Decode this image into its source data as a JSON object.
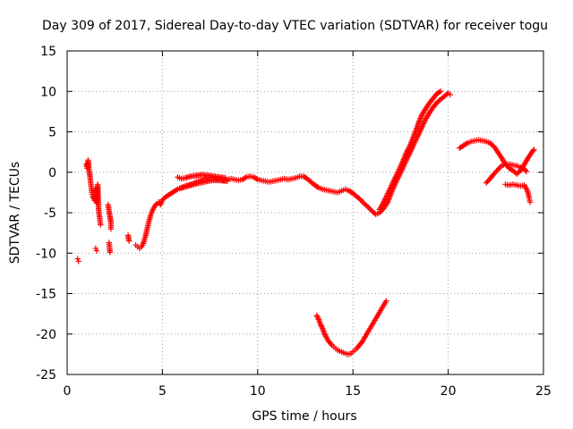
{
  "chart_data": {
    "type": "scatter",
    "title": "Day 309 of 2017, Sidereal Day-to-day VTEC variation (SDTVAR) for receiver togu",
    "xlabel": "GPS time / hours",
    "ylabel": "SDTVAR / TECUs",
    "xlim": [
      0,
      25
    ],
    "ylim": [
      -25,
      15
    ],
    "xticks": [
      "0",
      "5",
      "10",
      "15",
      "20",
      "25"
    ],
    "yticks": [
      "15",
      "10",
      "5",
      "0",
      "-5",
      "-10",
      "-15",
      "-20",
      "-25"
    ],
    "grid": true,
    "marker": "plus",
    "color": "#ff0000",
    "series": [
      {
        "name": "SDTVAR",
        "segments": [
          [
            [
              0.55,
              -10.7
            ],
            [
              0.6,
              -11.0
            ]
          ],
          [
            [
              1.0,
              1.0
            ],
            [
              1.05,
              0.5
            ],
            [
              1.1,
              1.5
            ],
            [
              1.15,
              0.2
            ],
            [
              1.2,
              -0.5
            ],
            [
              1.25,
              -1.5
            ],
            [
              1.3,
              -2.5
            ],
            [
              1.35,
              -3.0
            ],
            [
              1.45,
              -3.5
            ],
            [
              1.5,
              -2.0
            ],
            [
              1.55,
              -3.8
            ],
            [
              1.6,
              -1.5
            ],
            [
              1.65,
              -4.5
            ],
            [
              1.7,
              -5.5
            ],
            [
              1.75,
              -6.5
            ]
          ],
          [
            [
              1.5,
              -9.4
            ],
            [
              1.55,
              -9.7
            ]
          ],
          [
            [
              2.15,
              -4.0
            ],
            [
              2.2,
              -4.8
            ],
            [
              2.25,
              -5.5
            ],
            [
              2.3,
              -6.2
            ],
            [
              2.3,
              -7.0
            ]
          ],
          [
            [
              2.2,
              -8.7
            ],
            [
              2.25,
              -9.9
            ]
          ],
          [
            [
              3.2,
              -7.8
            ],
            [
              3.25,
              -8.5
            ]
          ],
          [
            [
              3.6,
              -9.0
            ],
            [
              3.7,
              -9.2
            ],
            [
              3.8,
              -9.4
            ],
            [
              3.9,
              -9.2
            ],
            [
              4.0,
              -8.8
            ],
            [
              4.1,
              -8.0
            ],
            [
              4.2,
              -7.0
            ],
            [
              4.3,
              -6.0
            ],
            [
              4.4,
              -5.2
            ],
            [
              4.5,
              -4.6
            ],
            [
              4.6,
              -4.2
            ],
            [
              4.7,
              -3.9
            ],
            [
              4.8,
              -3.7
            ],
            [
              4.9,
              -4.0
            ],
            [
              5.0,
              -3.4
            ],
            [
              5.2,
              -3.0
            ],
            [
              5.4,
              -2.7
            ],
            [
              5.6,
              -2.4
            ],
            [
              5.8,
              -2.1
            ],
            [
              6.0,
              -1.9
            ],
            [
              6.2,
              -1.7
            ],
            [
              6.5,
              -1.5
            ],
            [
              6.8,
              -1.2
            ],
            [
              7.0,
              -1.0
            ],
            [
              7.2,
              -0.8
            ],
            [
              7.4,
              -0.7
            ],
            [
              7.6,
              -0.7
            ],
            [
              7.8,
              -0.8
            ],
            [
              8.0,
              -0.9
            ],
            [
              8.2,
              -1.0
            ],
            [
              8.4,
              -0.9
            ],
            [
              8.6,
              -0.8
            ],
            [
              8.8,
              -0.9
            ],
            [
              9.0,
              -1.0
            ],
            [
              9.2,
              -0.9
            ],
            [
              9.4,
              -0.6
            ],
            [
              9.6,
              -0.5
            ],
            [
              9.8,
              -0.6
            ],
            [
              10.0,
              -0.9
            ],
            [
              10.2,
              -1.0
            ],
            [
              10.4,
              -1.1
            ],
            [
              10.6,
              -1.2
            ],
            [
              10.8,
              -1.1
            ],
            [
              11.0,
              -1.0
            ],
            [
              11.2,
              -0.9
            ],
            [
              11.4,
              -0.8
            ],
            [
              11.6,
              -0.9
            ],
            [
              11.8,
              -0.8
            ],
            [
              12.0,
              -0.7
            ],
            [
              12.2,
              -0.5
            ],
            [
              12.4,
              -0.5
            ],
            [
              12.6,
              -0.8
            ],
            [
              12.8,
              -1.2
            ],
            [
              13.0,
              -1.6
            ],
            [
              13.2,
              -1.9
            ],
            [
              13.4,
              -2.1
            ],
            [
              13.6,
              -2.2
            ],
            [
              13.8,
              -2.3
            ],
            [
              14.0,
              -2.4
            ],
            [
              14.2,
              -2.5
            ],
            [
              14.4,
              -2.3
            ],
            [
              14.6,
              -2.1
            ],
            [
              14.8,
              -2.3
            ],
            [
              15.0,
              -2.6
            ],
            [
              15.2,
              -3.0
            ],
            [
              15.4,
              -3.4
            ],
            [
              15.6,
              -3.9
            ],
            [
              15.8,
              -4.3
            ],
            [
              16.0,
              -4.8
            ],
            [
              16.2,
              -5.2
            ],
            [
              16.4,
              -5.0
            ],
            [
              16.6,
              -4.5
            ],
            [
              16.8,
              -3.8
            ],
            [
              17.0,
              -2.6
            ],
            [
              17.2,
              -1.5
            ],
            [
              17.4,
              -0.5
            ],
            [
              17.6,
              0.5
            ],
            [
              17.8,
              1.5
            ],
            [
              18.0,
              2.5
            ],
            [
              18.2,
              3.5
            ],
            [
              18.4,
              4.5
            ],
            [
              18.6,
              5.5
            ],
            [
              18.8,
              6.5
            ],
            [
              19.0,
              7.3
            ],
            [
              19.2,
              8.0
            ],
            [
              19.4,
              8.6
            ],
            [
              19.6,
              9.0
            ],
            [
              19.8,
              9.4
            ],
            [
              20.0,
              9.8
            ],
            [
              20.1,
              9.6
            ]
          ],
          [
            [
              5.8,
              -0.6
            ],
            [
              6.0,
              -0.8
            ],
            [
              6.2,
              -0.7
            ],
            [
              6.5,
              -0.5
            ],
            [
              6.8,
              -0.4
            ],
            [
              7.1,
              -0.3
            ],
            [
              7.4,
              -0.4
            ],
            [
              7.7,
              -0.5
            ],
            [
              8.0,
              -0.6
            ],
            [
              8.3,
              -0.7
            ]
          ],
          [
            [
              5.9,
              -2.0
            ],
            [
              6.2,
              -1.8
            ],
            [
              6.5,
              -1.6
            ],
            [
              6.8,
              -1.4
            ],
            [
              7.2,
              -1.2
            ],
            [
              7.6,
              -1.0
            ],
            [
              8.0,
              -1.0
            ],
            [
              8.4,
              -1.1
            ]
          ],
          [
            [
              16.4,
              -4.6
            ],
            [
              16.6,
              -3.8
            ],
            [
              16.8,
              -2.8
            ],
            [
              17.0,
              -1.8
            ],
            [
              17.2,
              -0.8
            ],
            [
              17.4,
              0.2
            ],
            [
              17.6,
              1.2
            ],
            [
              17.8,
              2.4
            ],
            [
              18.0,
              3.3
            ],
            [
              18.2,
              4.5
            ],
            [
              18.4,
              5.8
            ],
            [
              18.6,
              7.0
            ],
            [
              18.8,
              7.8
            ],
            [
              19.0,
              8.5
            ],
            [
              19.2,
              9.1
            ],
            [
              19.4,
              9.7
            ],
            [
              19.6,
              10.0
            ]
          ],
          [
            [
              13.1,
              -17.7
            ],
            [
              13.2,
              -18.2
            ],
            [
              13.3,
              -18.8
            ],
            [
              13.4,
              -19.3
            ],
            [
              13.5,
              -19.9
            ],
            [
              13.6,
              -20.4
            ],
            [
              13.7,
              -20.8
            ],
            [
              13.8,
              -21.1
            ],
            [
              13.9,
              -21.4
            ],
            [
              14.0,
              -21.6
            ],
            [
              14.1,
              -21.8
            ],
            [
              14.2,
              -22.0
            ],
            [
              14.3,
              -22.1
            ],
            [
              14.4,
              -22.2
            ],
            [
              14.5,
              -22.3
            ],
            [
              14.6,
              -22.4
            ],
            [
              14.7,
              -22.5
            ],
            [
              14.8,
              -22.5
            ],
            [
              14.9,
              -22.4
            ],
            [
              15.0,
              -22.2
            ],
            [
              15.1,
              -22.0
            ],
            [
              15.2,
              -21.8
            ],
            [
              15.3,
              -21.5
            ],
            [
              15.4,
              -21.2
            ],
            [
              15.5,
              -20.9
            ],
            [
              15.6,
              -20.5
            ],
            [
              15.7,
              -20.1
            ],
            [
              15.8,
              -19.7
            ],
            [
              15.9,
              -19.3
            ],
            [
              16.0,
              -18.9
            ],
            [
              16.1,
              -18.5
            ],
            [
              16.2,
              -18.1
            ],
            [
              16.3,
              -17.7
            ],
            [
              16.4,
              -17.3
            ],
            [
              16.5,
              -16.9
            ],
            [
              16.6,
              -16.5
            ],
            [
              16.7,
              -16.1
            ],
            [
              16.75,
              -15.9
            ]
          ],
          [
            [
              20.6,
              3.0
            ],
            [
              20.8,
              3.3
            ],
            [
              21.0,
              3.6
            ],
            [
              21.2,
              3.8
            ],
            [
              21.4,
              3.9
            ],
            [
              21.6,
              4.0
            ],
            [
              21.8,
              3.9
            ],
            [
              22.0,
              3.8
            ],
            [
              22.2,
              3.6
            ],
            [
              22.4,
              3.2
            ],
            [
              22.6,
              2.5
            ],
            [
              22.8,
              1.8
            ],
            [
              23.0,
              1.0
            ],
            [
              23.2,
              0.5
            ],
            [
              23.4,
              0.2
            ],
            [
              23.6,
              -0.2
            ],
            [
              23.8,
              0.2
            ],
            [
              24.0,
              1.0
            ],
            [
              24.2,
              1.8
            ],
            [
              24.4,
              2.5
            ],
            [
              24.5,
              2.8
            ]
          ],
          [
            [
              22.0,
              -1.3
            ],
            [
              22.2,
              -0.8
            ],
            [
              22.4,
              -0.2
            ],
            [
              22.6,
              0.3
            ],
            [
              22.8,
              0.8
            ],
            [
              23.0,
              1.0
            ],
            [
              23.2,
              1.0
            ],
            [
              23.4,
              0.9
            ],
            [
              23.6,
              0.8
            ],
            [
              23.8,
              0.6
            ],
            [
              24.0,
              0.4
            ],
            [
              24.1,
              0.1
            ]
          ],
          [
            [
              23.0,
              -1.5
            ],
            [
              23.2,
              -1.6
            ],
            [
              23.4,
              -1.5
            ],
            [
              23.6,
              -1.6
            ],
            [
              23.8,
              -1.7
            ],
            [
              24.0,
              -1.6
            ],
            [
              24.1,
              -2.0
            ],
            [
              24.2,
              -2.6
            ],
            [
              24.25,
              -3.2
            ],
            [
              24.3,
              -3.7
            ]
          ]
        ]
      }
    ]
  }
}
